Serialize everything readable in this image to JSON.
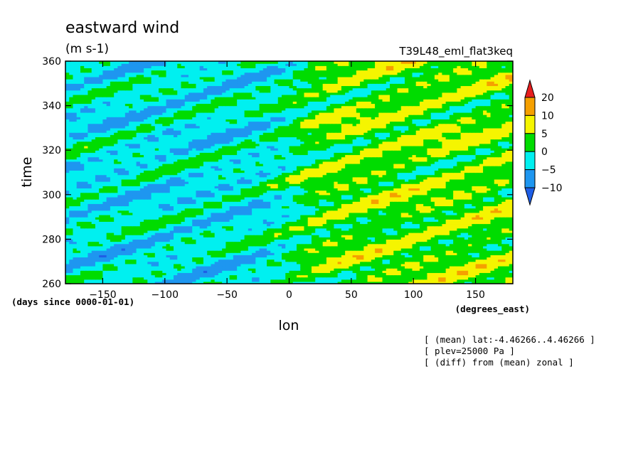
{
  "chart_data": {
    "type": "heatmap",
    "title": "eastward wind",
    "units": "(m s-1)",
    "run_label": "T39L48_eml_flat3keq",
    "xlabel": "lon",
    "x_units": "(degrees_east)",
    "ylabel": "time",
    "y_units": "(days since 0000-01-01)",
    "xlim": [
      -180,
      180
    ],
    "ylim": [
      260,
      360
    ],
    "x_ticks": [
      -150,
      -100,
      -50,
      0,
      50,
      100,
      150
    ],
    "y_ticks": [
      260,
      280,
      300,
      320,
      340,
      360
    ],
    "grid": false,
    "legend": "right",
    "colorbar": {
      "levels": [
        -10,
        -5,
        0,
        5,
        10,
        20
      ],
      "colors": [
        "#1e5ee6",
        "#1e96f0",
        "#00f0f0",
        "#00dc00",
        "#f5f500",
        "#f5a000",
        "#e61e1e"
      ]
    },
    "notes": [
      "[ (mean) lat:-4.46266..4.46266 ]",
      "[ plev=25000 Pa ]",
      "[ (diff) from (mean) zonal ]"
    ]
  }
}
